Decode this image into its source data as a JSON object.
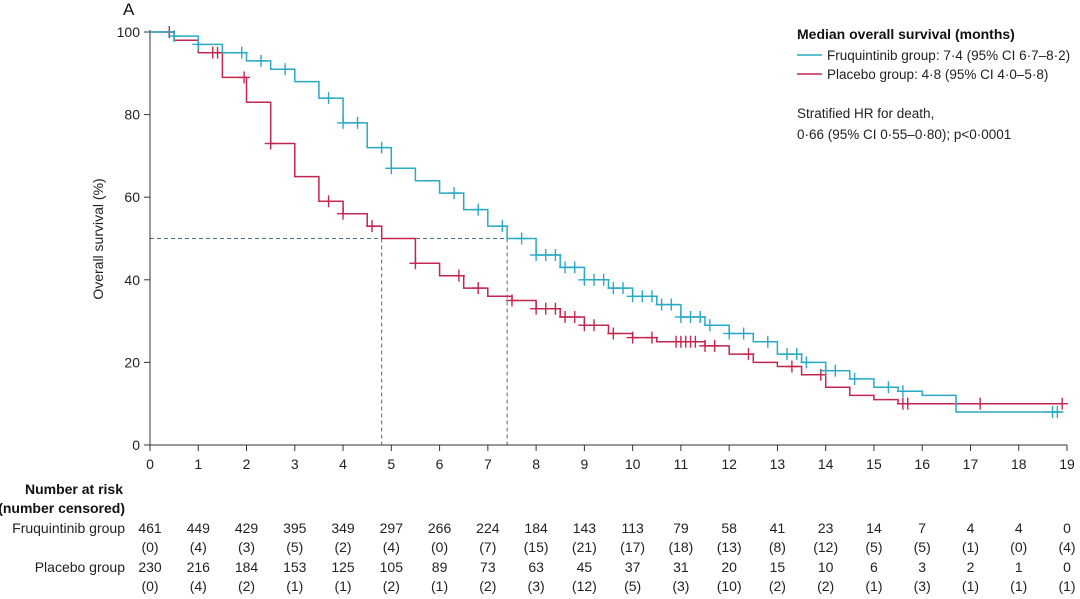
{
  "panel_label": "A",
  "colors": {
    "fruquintinib": "#2aa9c3",
    "placebo": "#c3264f",
    "axis": "#333333",
    "median_line": "#4a6f86"
  },
  "chart_data": {
    "type": "line",
    "subtype": "kaplan-meier",
    "ylabel": "Overall survival (%)",
    "xlabel": "",
    "xlim": [
      0,
      19
    ],
    "ylim": [
      0,
      100
    ],
    "xticks": [
      0,
      1,
      2,
      3,
      4,
      5,
      6,
      7,
      8,
      9,
      10,
      11,
      12,
      13,
      14,
      15,
      16,
      17,
      18,
      19
    ],
    "yticks": [
      0,
      20,
      40,
      60,
      80,
      100
    ],
    "legend": {
      "title": "Median overall survival (months)",
      "position": "top-right",
      "entries": [
        {
          "name": "Fruquintinib group: 7·4 (95% CI 6·7–8·2)",
          "color_key": "fruquintinib"
        },
        {
          "name": "Placebo group: 4·8 (95% CI 4·0–5·8)",
          "color_key": "placebo"
        }
      ]
    },
    "annotation": {
      "line1": "Stratified HR for death,",
      "line2": "0·66 (95% CI 0·55–0·80); p<0·0001"
    },
    "median_survival": {
      "fruquintinib": 7.4,
      "placebo": 4.8,
      "survival_level": 50
    },
    "series": [
      {
        "name": "Fruquintinib",
        "color_key": "fruquintinib",
        "x": [
          0,
          0.5,
          1,
          1.5,
          2,
          2.5,
          3,
          3.5,
          4,
          4.5,
          5,
          5.5,
          6,
          6.5,
          7,
          7.4,
          8,
          8.5,
          9,
          9.5,
          10,
          10.5,
          11,
          11.5,
          12,
          12.5,
          13,
          13.5,
          14,
          14.5,
          15,
          15.5,
          16,
          16.7,
          17,
          18,
          18.9
        ],
        "y": [
          100,
          99,
          97,
          95,
          93,
          91,
          88,
          84,
          78,
          72,
          67,
          64,
          61,
          57,
          53,
          50,
          46,
          43,
          40,
          38,
          36,
          34,
          31,
          29,
          27,
          25,
          22,
          20,
          18,
          16,
          14,
          13,
          12,
          8,
          8,
          8,
          8
        ],
        "censored_x": [
          0.5,
          1,
          1.9,
          2.3,
          2.8,
          3.7,
          4,
          4.3,
          4.8,
          5,
          6.3,
          6.8,
          7.3,
          7.7,
          8,
          8.2,
          8.4,
          8.6,
          8.8,
          9,
          9.2,
          9.4,
          9.6,
          9.8,
          10,
          10.2,
          10.4,
          10.6,
          10.8,
          11,
          11.2,
          11.4,
          11.6,
          12,
          12.3,
          12.8,
          13.2,
          13.4,
          13.6,
          14,
          14.2,
          14.6,
          15.3,
          15.6,
          18.7,
          18.8
        ]
      },
      {
        "name": "Placebo",
        "color_key": "placebo",
        "x": [
          0,
          0.5,
          1,
          1.5,
          2,
          2.5,
          3,
          3.5,
          4,
          4.5,
          4.8,
          5.5,
          6,
          6.5,
          7,
          7.5,
          8,
          8.5,
          9,
          9.5,
          10,
          10.5,
          11,
          11.5,
          12,
          12.5,
          13,
          13.5,
          14,
          14.5,
          15,
          15.5,
          16,
          17,
          18,
          18.9
        ],
        "y": [
          100,
          98,
          95,
          89,
          83,
          73,
          65,
          59,
          56,
          53,
          50,
          44,
          41,
          38,
          36,
          35,
          33,
          31,
          29,
          27,
          26,
          25,
          25,
          24,
          22,
          20,
          19,
          17,
          14,
          12,
          11,
          10,
          10,
          10,
          10,
          10
        ],
        "censored_x": [
          0.4,
          1.3,
          1.4,
          1.95,
          2.5,
          3.7,
          4.0,
          4.6,
          5.5,
          6.4,
          6.8,
          7.5,
          8.0,
          8.2,
          8.4,
          8.6,
          8.8,
          9.0,
          9.2,
          9.6,
          10.0,
          10.4,
          10.9,
          11.0,
          11.1,
          11.2,
          11.3,
          11.5,
          11.7,
          12.4,
          13.3,
          13.9,
          15.6,
          15.7,
          17.2,
          18.9
        ]
      }
    ],
    "risk_table": {
      "header_line1": "Number at risk",
      "header_line2": "(number censored)",
      "times": [
        0,
        1,
        2,
        3,
        4,
        5,
        6,
        7,
        8,
        9,
        10,
        11,
        12,
        13,
        14,
        15,
        16,
        17,
        18,
        19
      ],
      "rows": [
        {
          "label": "Fruquintinib group",
          "at_risk": [
            "461",
            "449",
            "429",
            "395",
            "349",
            "297",
            "266",
            "224",
            "184",
            "143",
            "113",
            "79",
            "58",
            "41",
            "23",
            "14",
            "7",
            "4",
            "4",
            "0"
          ],
          "censored": [
            "(0)",
            "(4)",
            "(3)",
            "(5)",
            "(2)",
            "(4)",
            "(0)",
            "(7)",
            "(15)",
            "(21)",
            "(17)",
            "(18)",
            "(13)",
            "(8)",
            "(12)",
            "(5)",
            "(5)",
            "(1)",
            "(0)",
            "(4)"
          ]
        },
        {
          "label": "Placebo group",
          "at_risk": [
            "230",
            "216",
            "184",
            "153",
            "125",
            "105",
            "89",
            "73",
            "63",
            "45",
            "37",
            "31",
            "20",
            "15",
            "10",
            "6",
            "3",
            "2",
            "1",
            "0"
          ],
          "censored": [
            "(0)",
            "(4)",
            "(2)",
            "(1)",
            "(1)",
            "(2)",
            "(1)",
            "(2)",
            "(3)",
            "(12)",
            "(5)",
            "(3)",
            "(10)",
            "(2)",
            "(2)",
            "(1)",
            "(3)",
            "(1)",
            "(1)",
            "(1)"
          ]
        }
      ]
    }
  }
}
